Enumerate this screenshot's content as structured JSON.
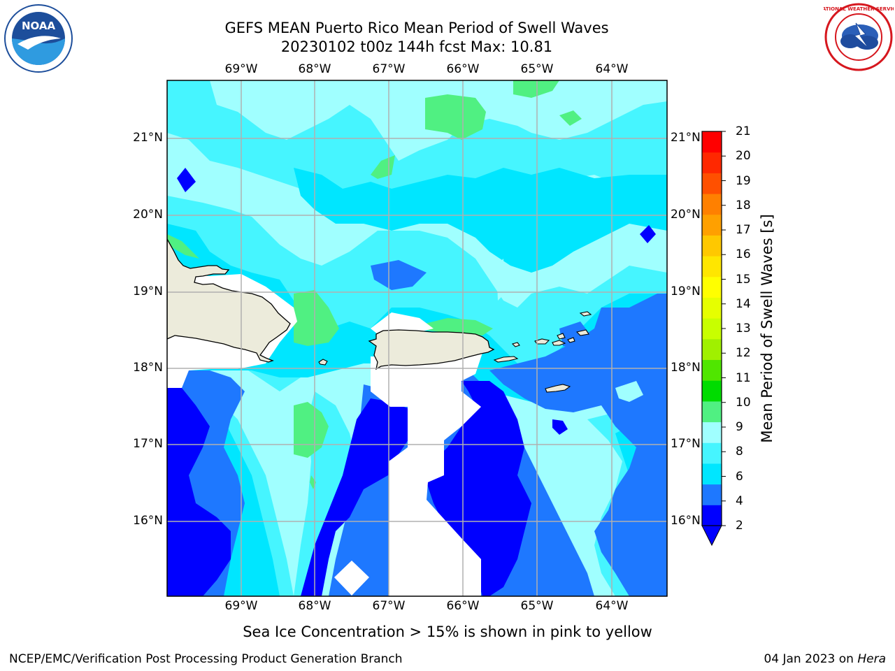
{
  "title": {
    "line1": "GEFS MEAN Puerto Rico Mean Period of Swell Waves",
    "line2": "20230102 t00z 144h fcst   Max: 10.81"
  },
  "logos": {
    "left": "noaa-logo",
    "right": "nws-logo",
    "left_text": "NOAA",
    "right_text": "NATIONAL WEATHER SERVICE"
  },
  "axes": {
    "lon_ticks": [
      "69°W",
      "68°W",
      "67°W",
      "66°W",
      "65°W",
      "64°W"
    ],
    "lat_ticks": [
      "21°N",
      "20°N",
      "19°N",
      "18°N",
      "17°N",
      "16°N"
    ],
    "grid": true
  },
  "colorbar": {
    "label": "Mean Period of Swell Waves [s]",
    "ticks": [
      "21",
      "20",
      "19",
      "18",
      "17",
      "16",
      "15",
      "14",
      "13",
      "12",
      "11",
      "10",
      "9",
      "8",
      "6",
      "4",
      "2"
    ],
    "colors": [
      "#0000ff",
      "#1e78ff",
      "#00e6ff",
      "#46f5ff",
      "#a0ffff",
      "#50f082",
      "#00dc00",
      "#50e600",
      "#a0f000",
      "#c8ff00",
      "#e6ff00",
      "#ffff00",
      "#ffe600",
      "#ffc800",
      "#ffa000",
      "#ff8000",
      "#ff5000",
      "#ff2800",
      "#ff0000"
    ],
    "extend": "min"
  },
  "map": {
    "land_color": "#ecebdb",
    "no_data_color": "#ffffff",
    "max_value": 10.81
  },
  "note": "Sea Ice Concentration > 15% is shown in pink to yellow",
  "footer": {
    "left": "NCEP/EMC/Verification Post Processing Product Generation Branch",
    "right_date": "04 Jan 2023 on ",
    "right_host": "Hera"
  }
}
